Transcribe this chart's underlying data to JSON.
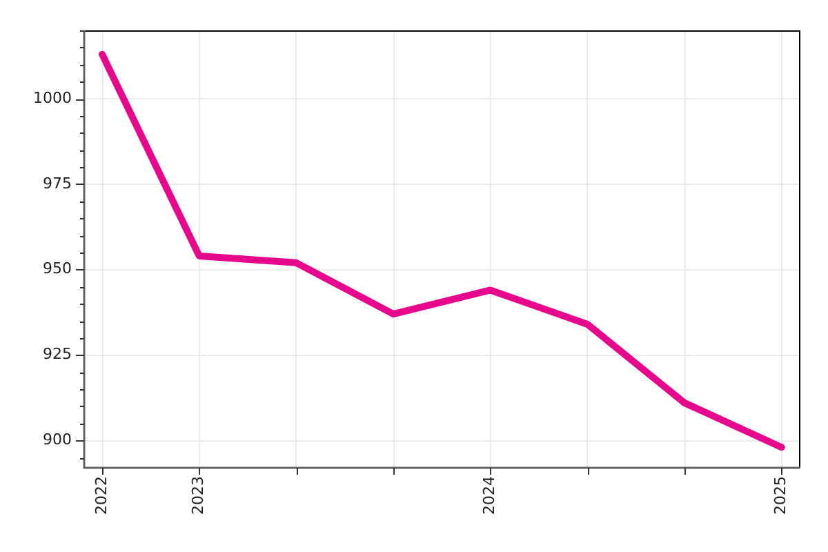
{
  "chart_data": {
    "type": "line",
    "categories": [
      "2022",
      "2023",
      null,
      null,
      "2024",
      null,
      null,
      "2025"
    ],
    "series": [
      {
        "color": "#e6078c",
        "values": [
          1013,
          954,
          952,
          937,
          944,
          934,
          911,
          898
        ]
      }
    ],
    "ylim": [
      892,
      1020
    ],
    "yticks": [
      {
        "value": 895,
        "label": null
      },
      900,
      {
        "value": 905,
        "label": null
      },
      {
        "value": 910,
        "label": null
      },
      {
        "value": 915,
        "label": null
      },
      {
        "value": 920,
        "label": null
      },
      925,
      {
        "value": 930,
        "label": null
      },
      {
        "value": 935,
        "label": null
      },
      {
        "value": 940,
        "label": null
      },
      {
        "value": 945,
        "label": null
      },
      950,
      {
        "value": 955,
        "label": null
      },
      {
        "value": 960,
        "label": null
      },
      {
        "value": 965,
        "label": null
      },
      {
        "value": 970,
        "label": null
      },
      975,
      {
        "value": 980,
        "label": null
      },
      {
        "value": 985,
        "label": null
      },
      {
        "value": 990,
        "label": null
      },
      {
        "value": 995,
        "label": null
      },
      1000,
      {
        "value": 1005,
        "label": null
      },
      {
        "value": 1010,
        "label": null
      },
      {
        "value": 1015,
        "label": null
      },
      {
        "value": 1020,
        "label": null
      }
    ],
    "grid": true,
    "legend": false,
    "marker": "none",
    "line_style": "solid"
  }
}
